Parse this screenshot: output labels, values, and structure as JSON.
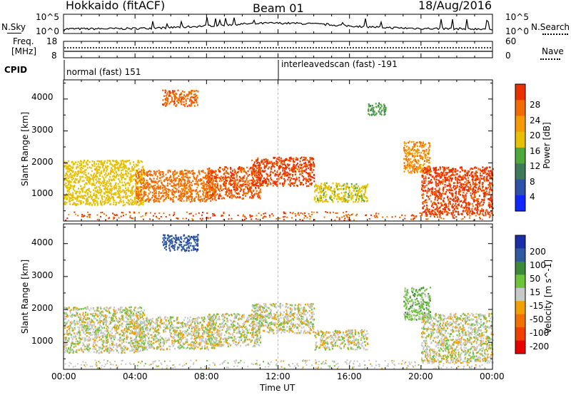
{
  "header": {
    "station": "Hokkaido (fitACF)",
    "beam": "Beam 01",
    "date": "18/Aug/2016"
  },
  "top_panels": {
    "nsky_label": "N.Sky",
    "nsky_ticks": [
      "10^5",
      "10^0"
    ],
    "nsearch_label": "N.Search",
    "nsearch_ticks": [
      "10^5",
      "10^0"
    ],
    "freq_label_1": "Freq.",
    "freq_label_2": "[MHz]",
    "freq_ticks": [
      "18",
      "8"
    ],
    "nave_label": "Nave",
    "nave_ticks": [
      "60",
      "0"
    ],
    "cpid_label": "CPID",
    "cpid_segments": [
      {
        "text": "normal (fast) 151",
        "start_hour": 0.0
      },
      {
        "text": "interleavedscan (fast) -191",
        "start_hour": 12.0
      }
    ]
  },
  "axes": {
    "ylabel": "Slant Range [km]",
    "xlabel": "Time UT",
    "y_ticks": [
      "1000",
      "2000",
      "3000",
      "4000"
    ],
    "x_ticks": [
      "00:00",
      "04:00",
      "08:00",
      "12:00",
      "16:00",
      "20:00",
      "00:00"
    ]
  },
  "colorbars": {
    "power_label": "Power [dB]",
    "power_ticks": [
      "4",
      "8",
      "12",
      "16",
      "20",
      "24",
      "28"
    ],
    "power_colors": [
      "#1028ff",
      "#2f52a8",
      "#3e7a5a",
      "#4fa83a",
      "#e8c000",
      "#f59a00",
      "#f26a00",
      "#e83000"
    ],
    "velocity_label": "Velocity [m s^-1]",
    "velocity_ticks": [
      "200",
      "100",
      "50",
      "15",
      "-15",
      "-50",
      "-100",
      "-200"
    ],
    "velocity_colors": [
      "#1a2ea8",
      "#2f5aa0",
      "#3a8a3a",
      "#6ec33a",
      "#c8c8c8",
      "#f0a000",
      "#f07000",
      "#f04000",
      "#e80000"
    ]
  },
  "chart_data": [
    {
      "type": "heatmap",
      "title": "Power [dB]",
      "xlabel": "Time UT",
      "ylabel": "Slant Range [km]",
      "xlim": [
        0,
        24
      ],
      "ylim": [
        180,
        4600
      ],
      "zlim": [
        0,
        30
      ],
      "regions": [
        {
          "t0": 0.0,
          "t1": 4.5,
          "r0": 700,
          "r1": 2100,
          "level": 17
        },
        {
          "t0": 4.0,
          "t1": 8.5,
          "r0": 800,
          "r1": 1800,
          "level": 24
        },
        {
          "t0": 8.0,
          "t1": 11.0,
          "r0": 900,
          "r1": 1900,
          "level": 26
        },
        {
          "t0": 10.5,
          "t1": 14.0,
          "r0": 1300,
          "r1": 2200,
          "level": 27
        },
        {
          "t0": 14.0,
          "t1": 17.0,
          "r0": 800,
          "r1": 1400,
          "level": 16
        },
        {
          "t0": 17.0,
          "t1": 18.0,
          "r0": 3500,
          "r1": 3900,
          "level": 11
        },
        {
          "t0": 19.0,
          "t1": 20.5,
          "r0": 1700,
          "r1": 2700,
          "level": 22
        },
        {
          "t0": 20.0,
          "t1": 24.0,
          "r0": 400,
          "r1": 1900,
          "level": 27
        },
        {
          "t0": 5.5,
          "t1": 7.5,
          "r0": 3800,
          "r1": 4300,
          "level": 25
        }
      ]
    },
    {
      "type": "heatmap",
      "title": "Velocity [m s^-1]",
      "xlabel": "Time UT",
      "ylabel": "Slant Range [km]",
      "xlim": [
        0,
        24
      ],
      "ylim": [
        180,
        4600
      ],
      "zlim": [
        -250,
        250
      ],
      "regions": [
        {
          "t0": 0.0,
          "t1": 4.5,
          "r0": 700,
          "r1": 2100,
          "level": 0
        },
        {
          "t0": 4.0,
          "t1": 8.5,
          "r0": 800,
          "r1": 1800,
          "level": 0
        },
        {
          "t0": 8.0,
          "t1": 11.0,
          "r0": 900,
          "r1": 1900,
          "level": 0
        },
        {
          "t0": 10.5,
          "t1": 14.0,
          "r0": 1300,
          "r1": 2200,
          "level": 0
        },
        {
          "t0": 14.0,
          "t1": 17.0,
          "r0": 800,
          "r1": 1400,
          "level": 0
        },
        {
          "t0": 19.0,
          "t1": 20.5,
          "r0": 1700,
          "r1": 2700,
          "level": 30
        },
        {
          "t0": 20.0,
          "t1": 24.0,
          "r0": 400,
          "r1": 1900,
          "level": 0
        },
        {
          "t0": 5.5,
          "t1": 7.5,
          "r0": 3800,
          "r1": 4300,
          "level": 180
        }
      ]
    }
  ]
}
